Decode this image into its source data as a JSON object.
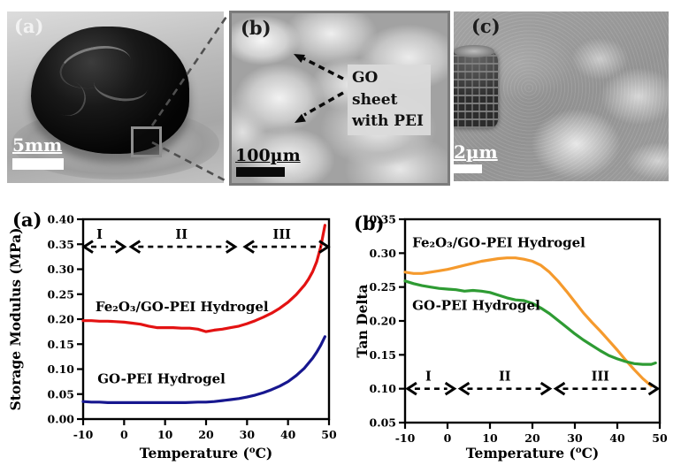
{
  "figure": {
    "panels": {
      "a": {
        "label": "(a)",
        "scale_bar": "5mm"
      },
      "b": {
        "label": "(b)",
        "scale_bar": "100µm",
        "annotation": "GO sheet with PEI"
      },
      "c": {
        "label": "(c)",
        "scale_bar": "2µm"
      }
    }
  },
  "chart_data": [
    {
      "id": "storage-modulus",
      "type": "line",
      "panel_label": "(a)",
      "xlabel_parts": [
        {
          "t": "Temperature ("
        },
        {
          "t": "o",
          "sup": true
        },
        {
          "t": "C)"
        }
      ],
      "ylabel": "Storage Modulus (MPa)",
      "xlim": [
        -10,
        50
      ],
      "ylim": [
        0.0,
        0.4
      ],
      "xticks": {
        "values": [
          -10,
          0,
          10,
          20,
          30,
          40,
          50
        ],
        "labels": [
          "-10",
          "0",
          "10",
          "20",
          "30",
          "40",
          "50"
        ]
      },
      "yticks": {
        "values": [
          0.0,
          0.05,
          0.1,
          0.15,
          0.2,
          0.25,
          0.3,
          0.35,
          0.4
        ],
        "labels": [
          "0.00",
          "0.05",
          "0.10",
          "0.15",
          "0.20",
          "0.25",
          "0.30",
          "0.35",
          "0.40"
        ]
      },
      "grid": false,
      "legend_position": "in-plot-text-labels",
      "series": [
        {
          "name": "Fe₂O₃/GO-PEI Hydrogel",
          "color": "#e31212",
          "label_pos": {
            "x": -7,
            "y": 0.216
          },
          "points": [
            [
              -10,
              0.197
            ],
            [
              -8,
              0.197
            ],
            [
              -6,
              0.196
            ],
            [
              -4,
              0.196
            ],
            [
              -2,
              0.195
            ],
            [
              0,
              0.194
            ],
            [
              2,
              0.192
            ],
            [
              4,
              0.19
            ],
            [
              6,
              0.186
            ],
            [
              8,
              0.183
            ],
            [
              10,
              0.183
            ],
            [
              12,
              0.183
            ],
            [
              14,
              0.182
            ],
            [
              16,
              0.182
            ],
            [
              18,
              0.18
            ],
            [
              20,
              0.175
            ],
            [
              22,
              0.178
            ],
            [
              24,
              0.18
            ],
            [
              26,
              0.183
            ],
            [
              28,
              0.186
            ],
            [
              30,
              0.191
            ],
            [
              32,
              0.197
            ],
            [
              34,
              0.204
            ],
            [
              36,
              0.212
            ],
            [
              38,
              0.222
            ],
            [
              40,
              0.234
            ],
            [
              42,
              0.249
            ],
            [
              44,
              0.268
            ],
            [
              45,
              0.28
            ],
            [
              46,
              0.295
            ],
            [
              47,
              0.315
            ],
            [
              48,
              0.345
            ],
            [
              49,
              0.388
            ]
          ]
        },
        {
          "name": "GO-PEI Hydrogel",
          "color": "#17178f",
          "label_pos": {
            "x": -6.5,
            "y": 0.072
          },
          "points": [
            [
              -10,
              0.035
            ],
            [
              -8,
              0.034
            ],
            [
              -6,
              0.034
            ],
            [
              -4,
              0.033
            ],
            [
              -2,
              0.033
            ],
            [
              0,
              0.033
            ],
            [
              5,
              0.033
            ],
            [
              10,
              0.033
            ],
            [
              15,
              0.033
            ],
            [
              18,
              0.034
            ],
            [
              20,
              0.034
            ],
            [
              22,
              0.035
            ],
            [
              24,
              0.037
            ],
            [
              26,
              0.039
            ],
            [
              28,
              0.041
            ],
            [
              30,
              0.044
            ],
            [
              32,
              0.048
            ],
            [
              34,
              0.053
            ],
            [
              36,
              0.059
            ],
            [
              38,
              0.066
            ],
            [
              40,
              0.075
            ],
            [
              42,
              0.087
            ],
            [
              44,
              0.102
            ],
            [
              46,
              0.122
            ],
            [
              47,
              0.134
            ],
            [
              48,
              0.148
            ],
            [
              49,
              0.165
            ]
          ]
        }
      ],
      "regions": {
        "y": 0.345,
        "segments": [
          {
            "label": "I",
            "from": -10,
            "to": 0.3,
            "label_x": -6
          },
          {
            "label": "II",
            "from": 1.5,
            "to": 27.3,
            "label_x": 14
          },
          {
            "label": "III",
            "from": 29.3,
            "to": 50,
            "label_x": 38.5
          }
        ]
      }
    },
    {
      "id": "tan-delta",
      "type": "line",
      "panel_label": "(b)",
      "xlabel_parts": [
        {
          "t": "Temperature ("
        },
        {
          "t": "o",
          "sup": true
        },
        {
          "t": "C)"
        }
      ],
      "ylabel": "Tan Delta",
      "xlim": [
        -10,
        50
      ],
      "ylim": [
        0.05,
        0.35
      ],
      "xticks": {
        "values": [
          -10,
          0,
          10,
          20,
          30,
          40,
          50
        ],
        "labels": [
          "-10",
          "0",
          "10",
          "20",
          "30",
          "40",
          "50"
        ]
      },
      "yticks": {
        "values": [
          0.05,
          0.1,
          0.15,
          0.2,
          0.25,
          0.3,
          0.35
        ],
        "labels": [
          "0.05",
          "0.10",
          "0.15",
          "0.20",
          "0.25",
          "0.30",
          "0.35"
        ]
      },
      "grid": false,
      "legend_position": "in-plot-text-labels",
      "series": [
        {
          "name": "Fe₂O₃/GO-PEI Hydrogel",
          "color": "#f59a2d",
          "label_pos": {
            "x": -8.3,
            "y": 0.309
          },
          "points": [
            [
              -10,
              0.272
            ],
            [
              -8,
              0.27
            ],
            [
              -6,
              0.27
            ],
            [
              -4,
              0.272
            ],
            [
              -2,
              0.274
            ],
            [
              0,
              0.276
            ],
            [
              2,
              0.279
            ],
            [
              4,
              0.282
            ],
            [
              6,
              0.285
            ],
            [
              8,
              0.288
            ],
            [
              10,
              0.29
            ],
            [
              12,
              0.292
            ],
            [
              14,
              0.293
            ],
            [
              16,
              0.293
            ],
            [
              18,
              0.291
            ],
            [
              20,
              0.288
            ],
            [
              22,
              0.282
            ],
            [
              24,
              0.272
            ],
            [
              26,
              0.259
            ],
            [
              28,
              0.244
            ],
            [
              30,
              0.228
            ],
            [
              32,
              0.212
            ],
            [
              34,
              0.198
            ],
            [
              36,
              0.185
            ],
            [
              38,
              0.171
            ],
            [
              40,
              0.157
            ],
            [
              42,
              0.142
            ],
            [
              44,
              0.128
            ],
            [
              46,
              0.115
            ],
            [
              48,
              0.104
            ]
          ]
        },
        {
          "name": "GO-PEI Hydrogel",
          "color": "#2e9b33",
          "label_pos": {
            "x": -8.3,
            "y": 0.216
          },
          "points": [
            [
              -10,
              0.259
            ],
            [
              -8,
              0.255
            ],
            [
              -6,
              0.252
            ],
            [
              -4,
              0.25
            ],
            [
              -2,
              0.248
            ],
            [
              0,
              0.247
            ],
            [
              2,
              0.246
            ],
            [
              4,
              0.244
            ],
            [
              6,
              0.245
            ],
            [
              8,
              0.244
            ],
            [
              10,
              0.242
            ],
            [
              12,
              0.238
            ],
            [
              14,
              0.234
            ],
            [
              16,
              0.231
            ],
            [
              18,
              0.23
            ],
            [
              20,
              0.226
            ],
            [
              22,
              0.219
            ],
            [
              24,
              0.211
            ],
            [
              26,
              0.201
            ],
            [
              28,
              0.191
            ],
            [
              30,
              0.181
            ],
            [
              32,
              0.172
            ],
            [
              34,
              0.164
            ],
            [
              36,
              0.156
            ],
            [
              38,
              0.149
            ],
            [
              40,
              0.144
            ],
            [
              42,
              0.14
            ],
            [
              44,
              0.137
            ],
            [
              46,
              0.136
            ],
            [
              48,
              0.136
            ],
            [
              49,
              0.138
            ]
          ]
        }
      ],
      "regions": {
        "y": 0.1,
        "segments": [
          {
            "label": "I",
            "from": -9.6,
            "to": 1.8,
            "label_x": -4.5
          },
          {
            "label": "II",
            "from": 2.8,
            "to": 24.3,
            "label_x": 13.5
          },
          {
            "label": "III",
            "from": 25.3,
            "to": 49.7,
            "label_x": 36
          }
        ]
      }
    }
  ]
}
